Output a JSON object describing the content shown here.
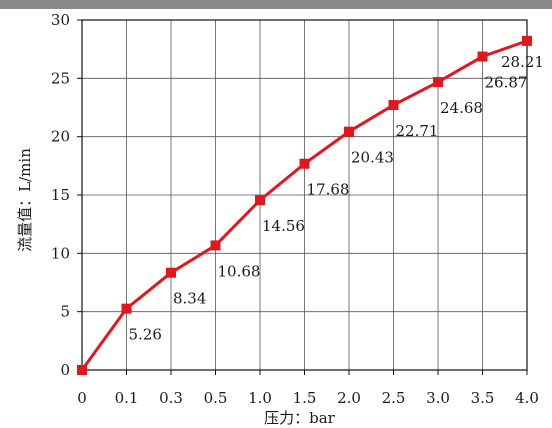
{
  "chart_data": {
    "type": "line",
    "categories": [
      "0",
      "0.1",
      "0.3",
      "0.5",
      "1.0",
      "1.5",
      "2.0",
      "2.5",
      "3.0",
      "3.5",
      "4.0"
    ],
    "series": [
      {
        "values": [
          0,
          5.26,
          8.34,
          10.68,
          14.56,
          17.68,
          20.43,
          22.71,
          24.68,
          26.87,
          28.21
        ],
        "data_labels": [
          "",
          "5.26",
          "8.34",
          "10.68",
          "14.56",
          "17.68",
          "20.43",
          "22.71",
          "24.68",
          "26.87",
          "28.21"
        ],
        "color": "#e3161b"
      }
    ],
    "title": "",
    "xlabel": "压力：bar",
    "ylabel": "流量值：L/min",
    "ylim": [
      0,
      30
    ],
    "yticks": [
      "0",
      "5",
      "10",
      "15",
      "20",
      "25",
      "30"
    ],
    "grid": true,
    "legend": "none"
  }
}
